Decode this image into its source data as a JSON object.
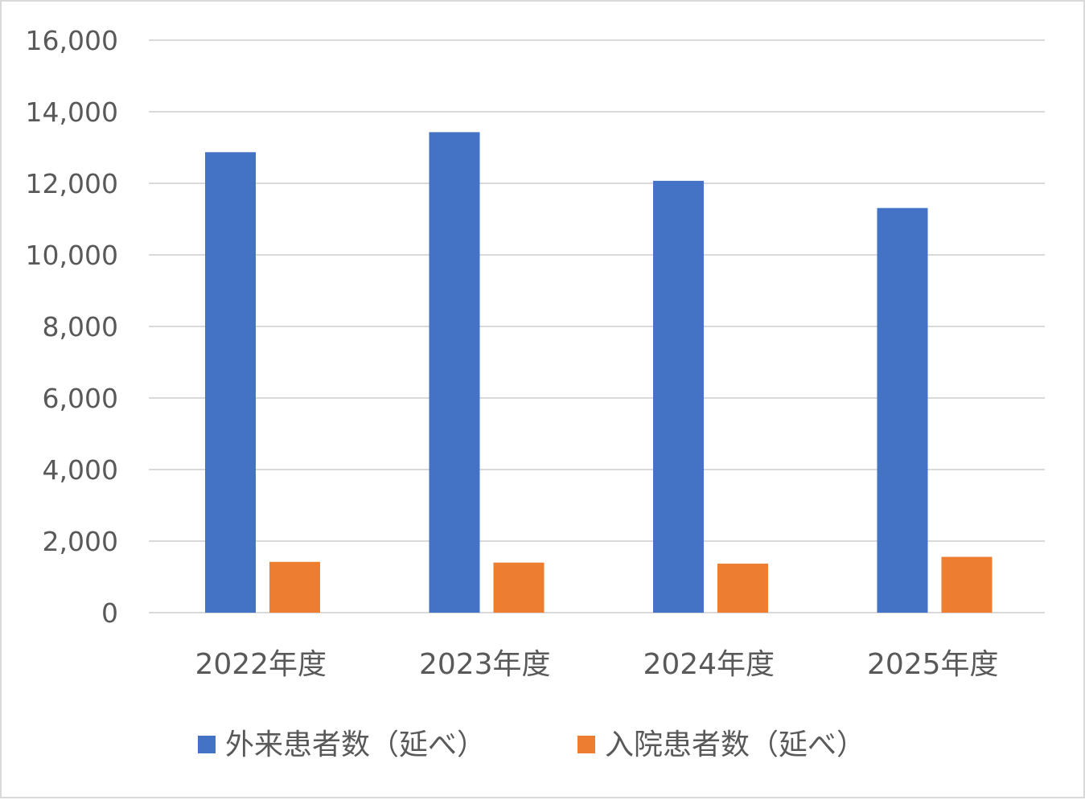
{
  "chart_data": {
    "type": "bar",
    "categories": [
      "2022年度",
      "2023年度",
      "2024年度",
      "2025年度"
    ],
    "series": [
      {
        "name": "外来患者数（延べ）",
        "color": "#4472C4",
        "values": [
          12870,
          13430,
          12070,
          11310
        ]
      },
      {
        "name": "入院患者数（延べ）",
        "color": "#ED7D31",
        "values": [
          1420,
          1400,
          1370,
          1560
        ]
      }
    ],
    "ylim": [
      0,
      16000
    ],
    "yticks": [
      0,
      2000,
      4000,
      6000,
      8000,
      10000,
      12000,
      14000,
      16000
    ],
    "ytick_labels": [
      "0",
      "2,000",
      "4,000",
      "6,000",
      "8,000",
      "10,000",
      "12,000",
      "14,000",
      "16,000"
    ],
    "grid": true,
    "legend_position": "bottom",
    "colors": {
      "gridline": "#d9d9d9",
      "text": "#595959",
      "border": "#d9d9d9"
    }
  }
}
